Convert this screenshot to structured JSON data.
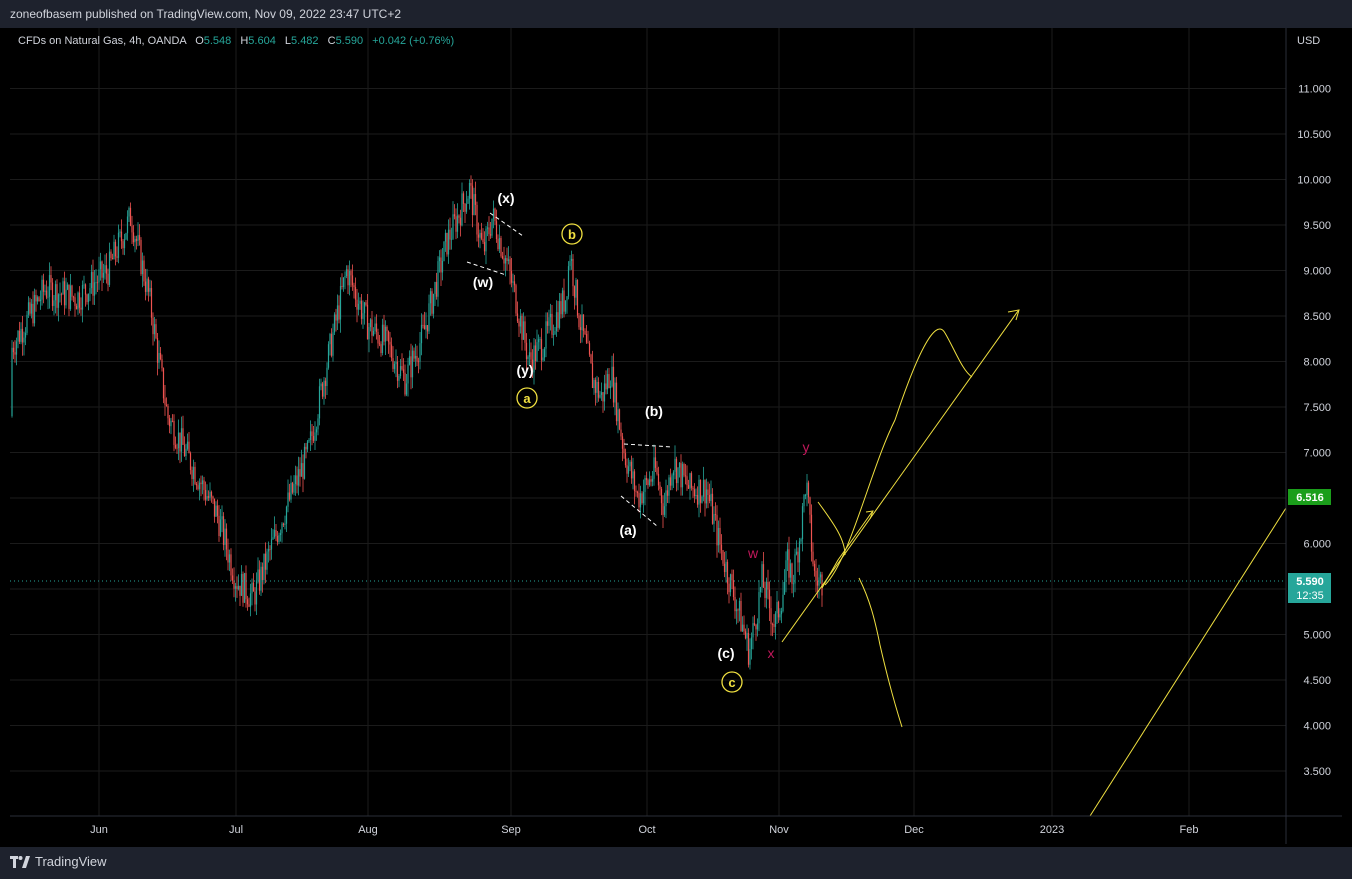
{
  "header": {
    "publisher_text": "zoneofbasem published on TradingView.com, Nov 09, 2022 23:47 UTC+2"
  },
  "legend": {
    "symbol": "CFDs on Natural Gas, 4h, OANDA",
    "open_label": "O",
    "open": "5.548",
    "high_label": "H",
    "high": "5.604",
    "low_label": "L",
    "low": "5.482",
    "close_label": "C",
    "close": "5.590",
    "change": "+0.042 (+0.76%)"
  },
  "axis": {
    "currency": "USD",
    "price_ticks": [
      "11.000",
      "10.500",
      "10.000",
      "9.500",
      "9.000",
      "8.500",
      "8.000",
      "7.500",
      "7.000",
      "6.500",
      "6.000",
      "5.500",
      "5.000",
      "4.500",
      "4.000",
      "3.500"
    ],
    "time_ticks": [
      "Jun",
      "Jul",
      "Aug",
      "Sep",
      "Oct",
      "Nov",
      "Dec",
      "2023",
      "Feb"
    ]
  },
  "price_labels": {
    "level_label": "6.516",
    "last_price": "5.590",
    "countdown": "12:35"
  },
  "colors": {
    "up": "#26a69a",
    "down": "#ef5350",
    "annotation": "#f0e040",
    "wave_red": "#c2185b",
    "level_green": "#1b9e1b",
    "last_teal": "#26a69a",
    "grid": "#1b1b1b"
  },
  "annotations": {
    "white_labels": [
      "(x)",
      "(w)",
      "(y)",
      "(b)",
      "(a)",
      "(c)"
    ],
    "circled_labels": [
      "a",
      "b",
      "c"
    ],
    "red_labels": [
      "y",
      "w",
      "x"
    ]
  },
  "footer": {
    "brand": "TradingView"
  },
  "chart_data": {
    "type": "candlestick",
    "symbol": "CFDs on Natural Gas",
    "interval": "4h",
    "exchange": "OANDA",
    "y_axis_label": "USD",
    "ylim": [
      3.1,
      11.5
    ],
    "x_axis_ticks": [
      "Jun",
      "Jul",
      "Aug",
      "Sep",
      "Oct",
      "Nov",
      "Dec",
      "2023",
      "Feb"
    ],
    "approx_swing_path": [
      {
        "t": "May 6",
        "price": 7.4
      },
      {
        "t": "May 13",
        "price": 8.2
      },
      {
        "t": "May 20",
        "price": 8.8
      },
      {
        "t": "May 27",
        "price": 8.7
      },
      {
        "t": "Jun 3",
        "price": 9.0
      },
      {
        "t": "Jun 8",
        "price": 9.6
      },
      {
        "t": "Jun 12",
        "price": 8.7
      },
      {
        "t": "Jun 16",
        "price": 7.4
      },
      {
        "t": "Jun 22",
        "price": 6.8
      },
      {
        "t": "Jun 27",
        "price": 6.3
      },
      {
        "t": "Jul 1",
        "price": 5.6
      },
      {
        "t": "Jul 5",
        "price": 5.4
      },
      {
        "t": "Jul 12",
        "price": 6.3
      },
      {
        "t": "Jul 18",
        "price": 7.0
      },
      {
        "t": "Jul 22",
        "price": 7.9
      },
      {
        "t": "Jul 27",
        "price": 9.0
      },
      {
        "t": "Aug 1",
        "price": 8.4
      },
      {
        "t": "Aug 5",
        "price": 8.2
      },
      {
        "t": "Aug 9",
        "price": 7.8
      },
      {
        "t": "Aug 13",
        "price": 8.3
      },
      {
        "t": "Aug 18",
        "price": 9.3
      },
      {
        "t": "Aug 23",
        "price": 9.9
      },
      {
        "t": "Aug 26",
        "price": 9.2
      },
      {
        "t": "Aug 28",
        "price": 9.6
      },
      {
        "t": "Aug 31",
        "price": 9.1
      },
      {
        "t": "Sep 2",
        "price": 8.7
      },
      {
        "t": "Sep 5",
        "price": 8.0
      },
      {
        "t": "Sep 8",
        "price": 8.2
      },
      {
        "t": "Sep 13",
        "price": 8.7
      },
      {
        "t": "Sep 14",
        "price": 9.2
      },
      {
        "t": "Sep 16",
        "price": 8.5
      },
      {
        "t": "Sep 19",
        "price": 7.8
      },
      {
        "t": "Sep 21",
        "price": 7.6
      },
      {
        "t": "Sep 23",
        "price": 7.9
      },
      {
        "t": "Sep 26",
        "price": 7.0
      },
      {
        "t": "Sep 29",
        "price": 6.5
      },
      {
        "t": "Oct 3",
        "price": 6.8
      },
      {
        "t": "Oct 5",
        "price": 6.4
      },
      {
        "t": "Oct 7",
        "price": 6.9
      },
      {
        "t": "Oct 11",
        "price": 6.6
      },
      {
        "t": "Oct 15",
        "price": 6.6
      },
      {
        "t": "Oct 18",
        "price": 6.0
      },
      {
        "t": "Oct 21",
        "price": 5.5
      },
      {
        "t": "Oct 24",
        "price": 5.0
      },
      {
        "t": "Oct 25",
        "price": 4.8
      },
      {
        "t": "Oct 27",
        "price": 5.3
      },
      {
        "t": "Oct 28",
        "price": 5.6
      },
      {
        "t": "Oct 31",
        "price": 5.1
      },
      {
        "t": "Nov 2",
        "price": 5.5
      },
      {
        "t": "Nov 3",
        "price": 5.8
      },
      {
        "t": "Nov 4",
        "price": 5.6
      },
      {
        "t": "Nov 6",
        "price": 6.2
      },
      {
        "t": "Nov 7",
        "price": 6.7
      },
      {
        "t": "Nov 8",
        "price": 6.1
      },
      {
        "t": "Nov 9",
        "price": 5.59
      }
    ],
    "last": {
      "open": 5.548,
      "high": 5.604,
      "low": 5.482,
      "close": 5.59,
      "change": 0.042,
      "change_pct": 0.76
    },
    "horizontal_level": 6.516
  }
}
